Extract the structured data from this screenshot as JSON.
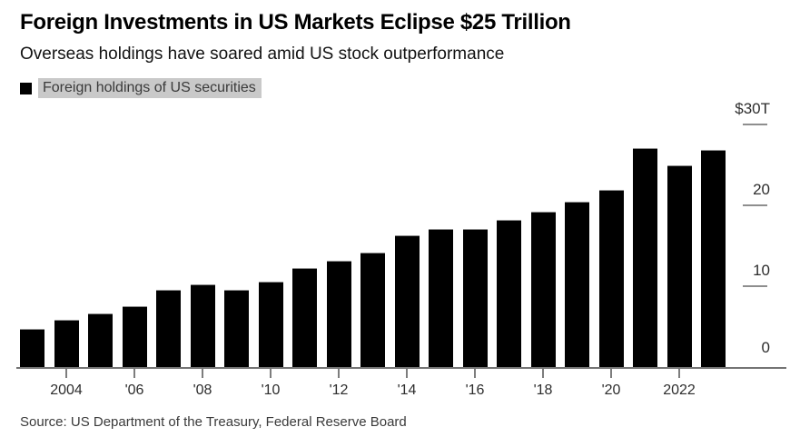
{
  "header": {
    "title": "Foreign Investments in US Markets Eclipse $25 Trillion",
    "subtitle": "Overseas holdings have soared amid US stock outperformance"
  },
  "legend": {
    "label": "Foreign holdings of US securities",
    "swatch_color": "#000000",
    "highlight_color": "#c9c9c9"
  },
  "source": "Source: US Department of the Treasury, Federal Reserve Board",
  "chart_data": {
    "type": "bar",
    "title": "Foreign Investments in US Markets Eclipse $25 Trillion",
    "subtitle": "Overseas holdings have soared amid US stock outperformance",
    "series_name": "Foreign holdings of US securities",
    "unit": "USD trillions",
    "categories": [
      2003,
      2004,
      2005,
      2006,
      2007,
      2008,
      2009,
      2010,
      2011,
      2012,
      2013,
      2014,
      2015,
      2016,
      2017,
      2018,
      2019,
      2020,
      2021,
      2022,
      2023
    ],
    "values": [
      4.7,
      5.8,
      6.6,
      7.5,
      9.6,
      10.2,
      9.5,
      10.6,
      12.2,
      13.1,
      14.2,
      16.3,
      17.1,
      17.1,
      18.2,
      19.2,
      20.4,
      21.9,
      27.1,
      24.9,
      26.8
    ],
    "xlabel": "",
    "ylabel": "",
    "ylim": [
      0,
      30
    ],
    "grid": false,
    "legend_position": "top-left",
    "y_axis_side": "right",
    "bar_color": "#000000",
    "axis_color": "#757575",
    "yticks": [
      {
        "value": 30,
        "label": "$30T"
      },
      {
        "value": 20,
        "label": "20"
      },
      {
        "value": 10,
        "label": "10"
      },
      {
        "value": 0,
        "label": "0"
      }
    ],
    "xticks": [
      {
        "year": 2004,
        "label": "2004"
      },
      {
        "year": 2006,
        "label": "'06"
      },
      {
        "year": 2008,
        "label": "'08"
      },
      {
        "year": 2010,
        "label": "'10"
      },
      {
        "year": 2012,
        "label": "'12"
      },
      {
        "year": 2014,
        "label": "'14"
      },
      {
        "year": 2016,
        "label": "'16"
      },
      {
        "year": 2018,
        "label": "'18"
      },
      {
        "year": 2020,
        "label": "'20"
      },
      {
        "year": 2022,
        "label": "2022"
      }
    ]
  }
}
